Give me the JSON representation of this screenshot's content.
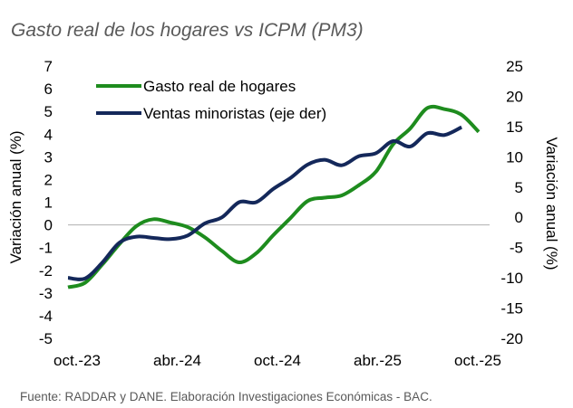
{
  "chart_data": {
    "type": "line",
    "title": "Gasto real de los hogares vs ICPM (PM3)",
    "source": "Fuente: RADDAR y DANE. Elaboración Investigaciones Económicas - BAC.",
    "ylabel": "Variación anual (%)",
    "y2label": "Variación anual (%)",
    "ylim": [
      -5,
      7
    ],
    "y2lim": [
      -20,
      25
    ],
    "yticks": [
      "7",
      "6",
      "5",
      "4",
      "3",
      "2",
      "1",
      "0",
      "-1",
      "-2",
      "-3",
      "-4",
      "-5"
    ],
    "y2ticks": [
      "25",
      "20",
      "15",
      "10",
      "5",
      "0",
      "-5",
      "-10",
      "-15",
      "-20"
    ],
    "xticks": [
      "oct.-23",
      "abr.-24",
      "oct.-24",
      "abr.-25",
      "oct.-25"
    ],
    "x_start": "oct.-23",
    "x_end": "oct.-25",
    "legend_position": "top-left",
    "grid": false,
    "series": [
      {
        "name": "Gasto real de hogares",
        "axis": "left",
        "color": "#1e8c1e",
        "values": [
          -2.75,
          -2.55,
          -1.75,
          -0.85,
          -0.05,
          0.25,
          0.1,
          -0.1,
          -0.55,
          -1.15,
          -1.65,
          -1.25,
          -0.45,
          0.3,
          1.05,
          1.2,
          1.3,
          1.75,
          2.35,
          3.55,
          4.25,
          5.15,
          5.1,
          4.85,
          4.1
        ]
      },
      {
        "name": "Ventas minoristas (eje der)",
        "axis": "right",
        "color": "#14285a",
        "values": [
          -10.0,
          -10.1,
          -7.5,
          -4.2,
          -3.2,
          -3.4,
          -3.6,
          -3.0,
          -1.0,
          0,
          2.5,
          2.5,
          4.7,
          6.5,
          8.7,
          9.5,
          8.6,
          10.1,
          10.6,
          12.6,
          11.7,
          13.9,
          13.6,
          14.9
        ]
      }
    ]
  }
}
